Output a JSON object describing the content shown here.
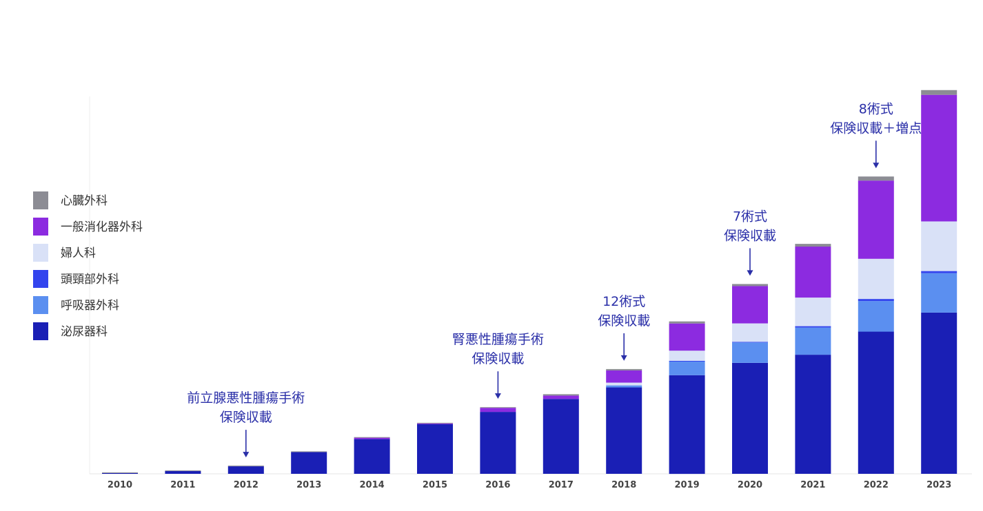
{
  "chart_data": {
    "type": "bar",
    "stacked": true,
    "categories": [
      "2010",
      "2011",
      "2012",
      "2013",
      "2014",
      "2015",
      "2016",
      "2017",
      "2018",
      "2019",
      "2020",
      "2021",
      "2022",
      "2023"
    ],
    "series": [
      {
        "name": "泌尿器科",
        "color": "#1a1fb5",
        "values": [
          1,
          4,
          11,
          32,
          51,
          73,
          91,
          110,
          127,
          145,
          163,
          175,
          209,
          237
        ]
      },
      {
        "name": "呼吸器外科",
        "color": "#5b8ff0",
        "values": [
          0,
          0,
          0,
          0,
          0,
          0,
          0,
          0,
          3,
          20,
          30,
          40,
          45,
          58
        ]
      },
      {
        "name": "頭頸部外科",
        "color": "#3344ee",
        "values": [
          0,
          0,
          0,
          0,
          0,
          0,
          0,
          0,
          0,
          1,
          1,
          2,
          3,
          3
        ]
      },
      {
        "name": "婦人科",
        "color": "#d9e1f7",
        "values": [
          0,
          0,
          0,
          0,
          0,
          0,
          0,
          0,
          4,
          15,
          27,
          42,
          59,
          73
        ]
      },
      {
        "name": "一般消化器外科",
        "color": "#8c2be0",
        "values": [
          0,
          0,
          0,
          0,
          2,
          1,
          6,
          5,
          18,
          40,
          55,
          75,
          115,
          186
        ]
      },
      {
        "name": "心臓外科",
        "color": "#8c8c94",
        "values": [
          1,
          1,
          1,
          1,
          1,
          1,
          1,
          2,
          2,
          3,
          3,
          4,
          6,
          7
        ]
      }
    ],
    "ylim": [
      0,
      580
    ],
    "grid": false,
    "legend_position": "left",
    "annotations": [
      {
        "year": "2012",
        "lines": [
          "前立腺悪性腫瘍手術",
          "保険収載"
        ]
      },
      {
        "year": "2016",
        "lines": [
          "腎悪性腫瘍手術",
          "保険収載"
        ]
      },
      {
        "year": "2018",
        "lines": [
          "12術式",
          "保険収載"
        ]
      },
      {
        "year": "2020",
        "lines": [
          "7術式",
          "保険収載"
        ]
      },
      {
        "year": "2022",
        "lines": [
          "8術式",
          "保険収載＋増点"
        ]
      }
    ]
  }
}
